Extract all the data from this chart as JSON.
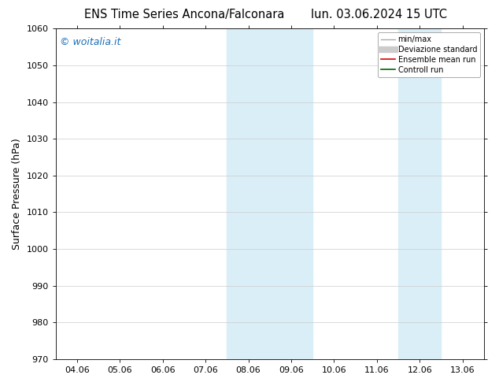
{
  "title_left": "ENS Time Series Ancona/Falconara",
  "title_right": "lun. 03.06.2024 15 UTC",
  "ylabel": "Surface Pressure (hPa)",
  "ylim": [
    970,
    1060
  ],
  "yticks": [
    970,
    980,
    990,
    1000,
    1010,
    1020,
    1030,
    1040,
    1050,
    1060
  ],
  "xlabels": [
    "04.06",
    "05.06",
    "06.06",
    "07.06",
    "08.06",
    "09.06",
    "10.06",
    "11.06",
    "12.06",
    "13.06"
  ],
  "shaded_regions": [
    {
      "xmin": 4,
      "xmax": 5,
      "color": "#daeef8"
    },
    {
      "xmin": 5,
      "xmax": 6,
      "color": "#daeef8"
    },
    {
      "xmin": 8,
      "xmax": 9,
      "color": "#daeef8"
    }
  ],
  "watermark": "© woitalia.it",
  "watermark_color": "#1a6eba",
  "legend_entries": [
    {
      "label": "min/max",
      "color": "#aaaaaa",
      "lw": 1.0,
      "type": "line"
    },
    {
      "label": "Deviazione standard",
      "color": "#cccccc",
      "lw": 6,
      "type": "line"
    },
    {
      "label": "Ensemble mean run",
      "color": "#dd0000",
      "lw": 1.2,
      "type": "line"
    },
    {
      "label": "Controll run",
      "color": "#006600",
      "lw": 1.2,
      "type": "line"
    }
  ],
  "background_color": "#ffffff",
  "title_fontsize": 10.5,
  "ylabel_fontsize": 9,
  "tick_fontsize": 8,
  "watermark_fontsize": 9
}
